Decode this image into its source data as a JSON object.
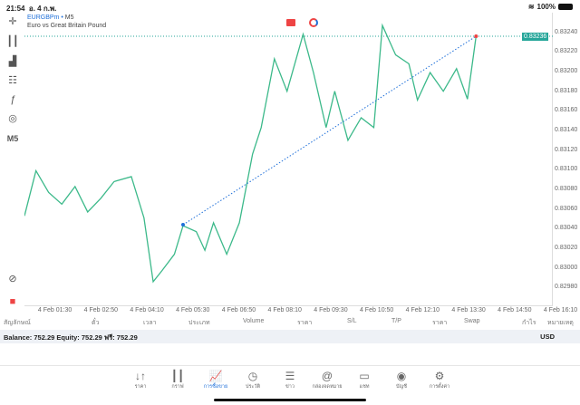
{
  "status": {
    "time": "21:54",
    "date": "อ. 4 ก.พ.",
    "battery": "100%"
  },
  "symbol": {
    "name": "EURGBPm",
    "timeframe": "M5",
    "description": "Euro vs Great Britain Pound",
    "current_price": "0.83236"
  },
  "toolbar": {
    "timeframe_label": "M5"
  },
  "chart_data": {
    "type": "line",
    "title": "EURGBPm, M5",
    "xlabel": "",
    "ylabel": "",
    "x_unit": "minutes since 4 Feb 00:00",
    "xlim": [
      37,
      917
    ],
    "ylim": [
      0.82961,
      0.8326
    ],
    "x_ticks": [
      {
        "v": 90,
        "label": "4 Feb 01:30"
      },
      {
        "v": 170,
        "label": "4 Feb 02:50"
      },
      {
        "v": 250,
        "label": "4 Feb 04:10"
      },
      {
        "v": 330,
        "label": "4 Feb 05:30"
      },
      {
        "v": 410,
        "label": "4 Feb 06:50"
      },
      {
        "v": 490,
        "label": "4 Feb 08:10"
      },
      {
        "v": 570,
        "label": "4 Feb 09:30"
      },
      {
        "v": 650,
        "label": "4 Feb 10:50"
      },
      {
        "v": 730,
        "label": "4 Feb 12:10"
      },
      {
        "v": 810,
        "label": "4 Feb 13:30"
      },
      {
        "v": 890,
        "label": "4 Feb 14:50"
      },
      {
        "v": 970,
        "label": "4 Feb 16:10"
      }
    ],
    "y_ticks": [
      "0.83240",
      "0.83220",
      "0.83200",
      "0.83180",
      "0.83160",
      "0.83140",
      "0.83120",
      "0.83100",
      "0.83080",
      "0.83060",
      "0.83040",
      "0.83020",
      "0.83000",
      "0.82980"
    ],
    "series": [
      {
        "name": "EURGBPm",
        "color": "#3cb98a",
        "points": [
          [
            37,
            0.83053
          ],
          [
            57,
            0.83099
          ],
          [
            79,
            0.83077
          ],
          [
            102,
            0.83065
          ],
          [
            125,
            0.83083
          ],
          [
            147,
            0.83057
          ],
          [
            170,
            0.83071
          ],
          [
            193,
            0.83088
          ],
          [
            223,
            0.83093
          ],
          [
            245,
            0.83051
          ],
          [
            261,
            0.82986
          ],
          [
            276,
            0.82997
          ],
          [
            298,
            0.83014
          ],
          [
            313,
            0.83043
          ],
          [
            336,
            0.83037
          ],
          [
            351,
            0.83018
          ],
          [
            366,
            0.83046
          ],
          [
            389,
            0.83014
          ],
          [
            411,
            0.83046
          ],
          [
            434,
            0.83116
          ],
          [
            449,
            0.83143
          ],
          [
            472,
            0.83213
          ],
          [
            494,
            0.8318
          ],
          [
            522,
            0.83238
          ],
          [
            540,
            0.83199
          ],
          [
            562,
            0.83143
          ],
          [
            577,
            0.8318
          ],
          [
            600,
            0.8313
          ],
          [
            623,
            0.83153
          ],
          [
            645,
            0.83143
          ],
          [
            660,
            0.83247
          ],
          [
            683,
            0.83217
          ],
          [
            706,
            0.83208
          ],
          [
            721,
            0.83171
          ],
          [
            743,
            0.83199
          ],
          [
            766,
            0.8318
          ],
          [
            789,
            0.83203
          ],
          [
            808,
            0.83172
          ],
          [
            823,
            0.83236
          ]
        ]
      }
    ],
    "trendline": {
      "from": [
        313,
        0.83044
      ],
      "to": [
        823,
        0.83236
      ],
      "color": "#1e6fd9"
    },
    "price_line": 0.83236
  },
  "table": {
    "headers": [
      {
        "label": "สัญลักษณ์"
      },
      {
        "label": "ตั๋ว"
      },
      {
        "label": "เวลา"
      },
      {
        "label": "ประเภท"
      },
      {
        "label": "Volume"
      },
      {
        "label": "ราคา"
      },
      {
        "label": "S/L"
      },
      {
        "label": "T/P"
      },
      {
        "label": "ราคา"
      },
      {
        "label": "Swap"
      },
      {
        "label": "กำไร"
      },
      {
        "label": "หมายเหตุ"
      }
    ]
  },
  "balance": {
    "text": "Balance: 752.29 Equity: 752.29 ฟรี: 752.29",
    "currency": "USD"
  },
  "nav": [
    {
      "label": "ราคา",
      "icon": "↓↑"
    },
    {
      "label": "กราฟ",
      "icon": "┃┃"
    },
    {
      "label": "การซื้อขาย",
      "icon": "📈"
    },
    {
      "label": "ประวัติ",
      "icon": "◷"
    },
    {
      "label": "ข่าว",
      "icon": "☰"
    },
    {
      "label": "กล่องจดหมาย",
      "icon": "@"
    },
    {
      "label": "แชท",
      "icon": "▭"
    },
    {
      "label": "บัญชี",
      "icon": "◉"
    },
    {
      "label": "การตั้งค่า",
      "icon": "⚙"
    }
  ]
}
